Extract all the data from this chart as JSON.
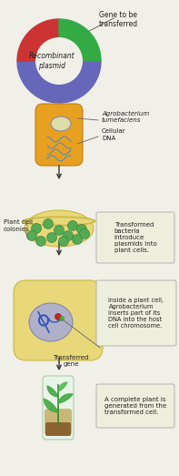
{
  "bg_color": "#f0efe8",
  "arrow_color": "#333333",
  "plasmid_colors_seg": [
    "#6666bb",
    "#6666bb",
    "#cc3333",
    "#33aa44"
  ],
  "plasmid_inner_color": "#f0efe8",
  "plasmid_text": "Recombinant\nplasmid",
  "gene_label": "Gene to be\ntransferred",
  "bacterium_color": "#e8a020",
  "bacterium_edge": "#c08010",
  "plasmid_in_bact_color": "#ddddaa",
  "plasmid_in_bact_edge": "#8888aa",
  "dna_squiggle_color": "#4488cc",
  "bact_label1": "Agrobacterium\ntumefaciens",
  "bact_label2": "Cellular\nDNA",
  "petri_color": "#e8d87a",
  "petri_edge": "#c8b840",
  "petri_rim_color": "#d0c060",
  "colony_color": "#55aa55",
  "colony_edge": "#337733",
  "petri_label": "Plant cell\ncolonies",
  "petri_box_text": "Transformed\nbacteria\nintroduce\nplasmids into\nplant cells.",
  "cell_color": "#e8d87a",
  "cell_edge": "#c8b840",
  "nucleus_color": "#b0b0c8",
  "nucleus_edge": "#8888aa",
  "chrom_color": "#3355bb",
  "gene_dot_color": "#cc2222",
  "cell_box_text": "Inside a plant cell,\nAgrobacterium\ninserts part of its\nDNA into the host\ncell chromosome.",
  "transferred_label": "Transferred\ngene",
  "tube_glass_color": "#e8f4e8",
  "tube_glass_edge": "#aaccaa",
  "tube_soil_color": "#8B6432",
  "tube_agar_color": "#c8b878",
  "plant_stem_color": "#338833",
  "plant_leaf_color": "#44aa44",
  "tube_box_text": "A complete plant is\ngenerated from the\ntransformed cell.",
  "box_color": "#eeeedd",
  "box_edge_color": "#aaaaaa",
  "text_color": "#222222",
  "line_color": "#666666"
}
